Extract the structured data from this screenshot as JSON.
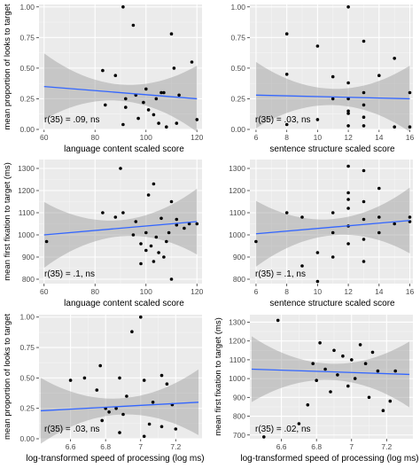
{
  "chart_data": [
    {
      "type": "scatter",
      "ylabel": "mean proportion of looks to target",
      "xlabel": "language content scaled score",
      "annotation": "r(35) = .09, ns",
      "xlim": [
        58,
        122
      ],
      "ylim": [
        0,
        1.02
      ],
      "xticks": [
        60,
        80,
        100,
        120
      ],
      "yticks": [
        0.0,
        0.25,
        0.5,
        0.75,
        1.0
      ],
      "grid": true,
      "points": [
        [
          91,
          1.0
        ],
        [
          95,
          0.85
        ],
        [
          110,
          0.78
        ],
        [
          83,
          0.48
        ],
        [
          88,
          0.44
        ],
        [
          118,
          0.55
        ],
        [
          111,
          0.5
        ],
        [
          100,
          0.33
        ],
        [
          96,
          0.28
        ],
        [
          104,
          0.25
        ],
        [
          106,
          0.3
        ],
        [
          107,
          0.3
        ],
        [
          113,
          0.28
        ],
        [
          99,
          0.22
        ],
        [
          101,
          0.16
        ],
        [
          92,
          0.18
        ],
        [
          97,
          0.09
        ],
        [
          103,
          0.12
        ],
        [
          105,
          0.05
        ],
        [
          91,
          0.04
        ],
        [
          108,
          0.02
        ],
        [
          112,
          0.05
        ],
        [
          120,
          0.08
        ],
        [
          84,
          0.2
        ],
        [
          92,
          0.25
        ]
      ],
      "fit": {
        "x": [
          60,
          120
        ],
        "y": [
          0.35,
          0.25
        ]
      }
    },
    {
      "type": "scatter",
      "ylabel": "",
      "xlabel": "sentence structure scaled score",
      "annotation": "r(35) = .03, ns",
      "xlim": [
        5.6,
        16.2
      ],
      "ylim": [
        0,
        1.02
      ],
      "xticks": [
        6,
        8,
        10,
        12,
        14,
        16
      ],
      "yticks": [
        0.0,
        0.25,
        0.5,
        0.75,
        1.0
      ],
      "grid": true,
      "points": [
        [
          12,
          1.0
        ],
        [
          8,
          0.78
        ],
        [
          10,
          0.68
        ],
        [
          13,
          0.72
        ],
        [
          15,
          0.58
        ],
        [
          8,
          0.45
        ],
        [
          11,
          0.43
        ],
        [
          14,
          0.44
        ],
        [
          12,
          0.38
        ],
        [
          13,
          0.3
        ],
        [
          16,
          0.3
        ],
        [
          11,
          0.25
        ],
        [
          12,
          0.25
        ],
        [
          13,
          0.2
        ],
        [
          12,
          0.15
        ],
        [
          12,
          0.13
        ],
        [
          10,
          0.08
        ],
        [
          8,
          0.04
        ],
        [
          12,
          0.03
        ],
        [
          13,
          0.03
        ],
        [
          15,
          0.02
        ],
        [
          16,
          0.02
        ],
        [
          13,
          0.1
        ]
      ],
      "fit": {
        "x": [
          6,
          16
        ],
        "y": [
          0.28,
          0.25
        ]
      }
    },
    {
      "type": "scatter",
      "ylabel": "mean first fixation to target (ms)",
      "xlabel": "language content scaled score",
      "annotation": "r(35) = .1, ns",
      "xlim": [
        58,
        122
      ],
      "ylim": [
        780,
        1340
      ],
      "xticks": [
        60,
        80,
        100,
        120
      ],
      "yticks": [
        800,
        900,
        1000,
        1100,
        1200,
        1300
      ],
      "grid": true,
      "points": [
        [
          90,
          1300
        ],
        [
          103,
          1230
        ],
        [
          101,
          1180
        ],
        [
          110,
          1150
        ],
        [
          83,
          1100
        ],
        [
          91,
          1100
        ],
        [
          88,
          1080
        ],
        [
          106,
          1075
        ],
        [
          96,
          1060
        ],
        [
          112,
          1070
        ],
        [
          117,
          1050
        ],
        [
          100,
          1010
        ],
        [
          95,
          1000
        ],
        [
          104,
          990
        ],
        [
          108,
          970
        ],
        [
          109,
          1010
        ],
        [
          102,
          950
        ],
        [
          98,
          960
        ],
        [
          100,
          930
        ],
        [
          105,
          920
        ],
        [
          107,
          900
        ],
        [
          103,
          880
        ],
        [
          98,
          870
        ],
        [
          110,
          800
        ],
        [
          115,
          1030
        ],
        [
          120,
          1050
        ],
        [
          61,
          970
        ],
        [
          112,
          1045
        ]
      ],
      "fit": {
        "x": [
          60,
          120
        ],
        "y": [
          1000,
          1060
        ]
      }
    },
    {
      "type": "scatter",
      "ylabel": "",
      "xlabel": "sentence structure scaled score",
      "annotation": "r(35) = .1, ns",
      "xlim": [
        5.6,
        16.2
      ],
      "ylim": [
        780,
        1340
      ],
      "xticks": [
        6,
        8,
        10,
        12,
        14,
        16
      ],
      "yticks": [
        800,
        900,
        1000,
        1100,
        1200,
        1300
      ],
      "grid": true,
      "points": [
        [
          12,
          1310
        ],
        [
          13,
          1290
        ],
        [
          12,
          1190
        ],
        [
          14,
          1210
        ],
        [
          12,
          1160
        ],
        [
          13,
          1150
        ],
        [
          12,
          1120
        ],
        [
          8,
          1100
        ],
        [
          9,
          1080
        ],
        [
          11,
          1100
        ],
        [
          15,
          1050
        ],
        [
          16,
          1080
        ],
        [
          13,
          1070
        ],
        [
          12,
          1040
        ],
        [
          14,
          1010
        ],
        [
          11,
          1010
        ],
        [
          13,
          980
        ],
        [
          12,
          960
        ],
        [
          10,
          920
        ],
        [
          11,
          900
        ],
        [
          13,
          880
        ],
        [
          9,
          860
        ],
        [
          10,
          790
        ],
        [
          16,
          1060
        ],
        [
          6,
          970
        ],
        [
          14,
          1080
        ]
      ],
      "fit": {
        "x": [
          6,
          16
        ],
        "y": [
          1005,
          1065
        ]
      }
    },
    {
      "type": "scatter",
      "ylabel": "mean proportion of looks to target",
      "xlabel": "log-transformed speed of processing (log ms)",
      "annotation": "r(35) = .03, ns",
      "xlim": [
        6.42,
        7.35
      ],
      "ylim": [
        0,
        1.02
      ],
      "xticks": [
        6.6,
        6.8,
        7.0,
        7.2
      ],
      "yticks": [
        0.0,
        0.25,
        0.5,
        0.75,
        1.0
      ],
      "grid": true,
      "points": [
        [
          7.0,
          1.0
        ],
        [
          6.95,
          0.88
        ],
        [
          6.77,
          0.6
        ],
        [
          7.12,
          0.52
        ],
        [
          6.68,
          0.5
        ],
        [
          7.02,
          0.48
        ],
        [
          6.6,
          0.48
        ],
        [
          7.15,
          0.45
        ],
        [
          6.88,
          0.5
        ],
        [
          6.75,
          0.4
        ],
        [
          6.92,
          0.35
        ],
        [
          7.07,
          0.3
        ],
        [
          7.18,
          0.28
        ],
        [
          6.8,
          0.25
        ],
        [
          6.82,
          0.22
        ],
        [
          6.9,
          0.2
        ],
        [
          6.78,
          0.15
        ],
        [
          7.05,
          0.12
        ],
        [
          7.12,
          0.1
        ],
        [
          7.2,
          0.08
        ],
        [
          6.88,
          0.05
        ],
        [
          7.02,
          0.02
        ],
        [
          6.86,
          0.25
        ]
      ],
      "fit": {
        "x": [
          6.43,
          7.33
        ],
        "y": [
          0.23,
          0.3
        ]
      }
    },
    {
      "type": "scatter",
      "ylabel": "mean first fixation to target (ms)",
      "xlabel": "log-transformed speed of processing (log ms)",
      "annotation": "r(35) = .02, ns",
      "xlim": [
        6.42,
        7.35
      ],
      "ylim": [
        680,
        1340
      ],
      "xticks": [
        6.6,
        6.8,
        7.0,
        7.2
      ],
      "yticks": [
        700,
        800,
        900,
        1000,
        1100,
        1200,
        1300
      ],
      "grid": true,
      "points": [
        [
          6.58,
          1310
        ],
        [
          6.82,
          1190
        ],
        [
          7.05,
          1180
        ],
        [
          6.9,
          1150
        ],
        [
          7.12,
          1140
        ],
        [
          6.95,
          1120
        ],
        [
          7.0,
          1100
        ],
        [
          6.78,
          1080
        ],
        [
          7.08,
          1080
        ],
        [
          6.85,
          1050
        ],
        [
          7.15,
          1040
        ],
        [
          6.92,
          1020
        ],
        [
          7.02,
          1000
        ],
        [
          6.8,
          990
        ],
        [
          6.98,
          960
        ],
        [
          6.88,
          930
        ],
        [
          7.1,
          900
        ],
        [
          7.22,
          880
        ],
        [
          6.75,
          860
        ],
        [
          7.18,
          830
        ],
        [
          6.7,
          760
        ],
        [
          6.5,
          690
        ],
        [
          7.25,
          1040
        ]
      ],
      "fit": {
        "x": [
          6.43,
          7.33
        ],
        "y": [
          1050,
          1022
        ]
      }
    }
  ]
}
